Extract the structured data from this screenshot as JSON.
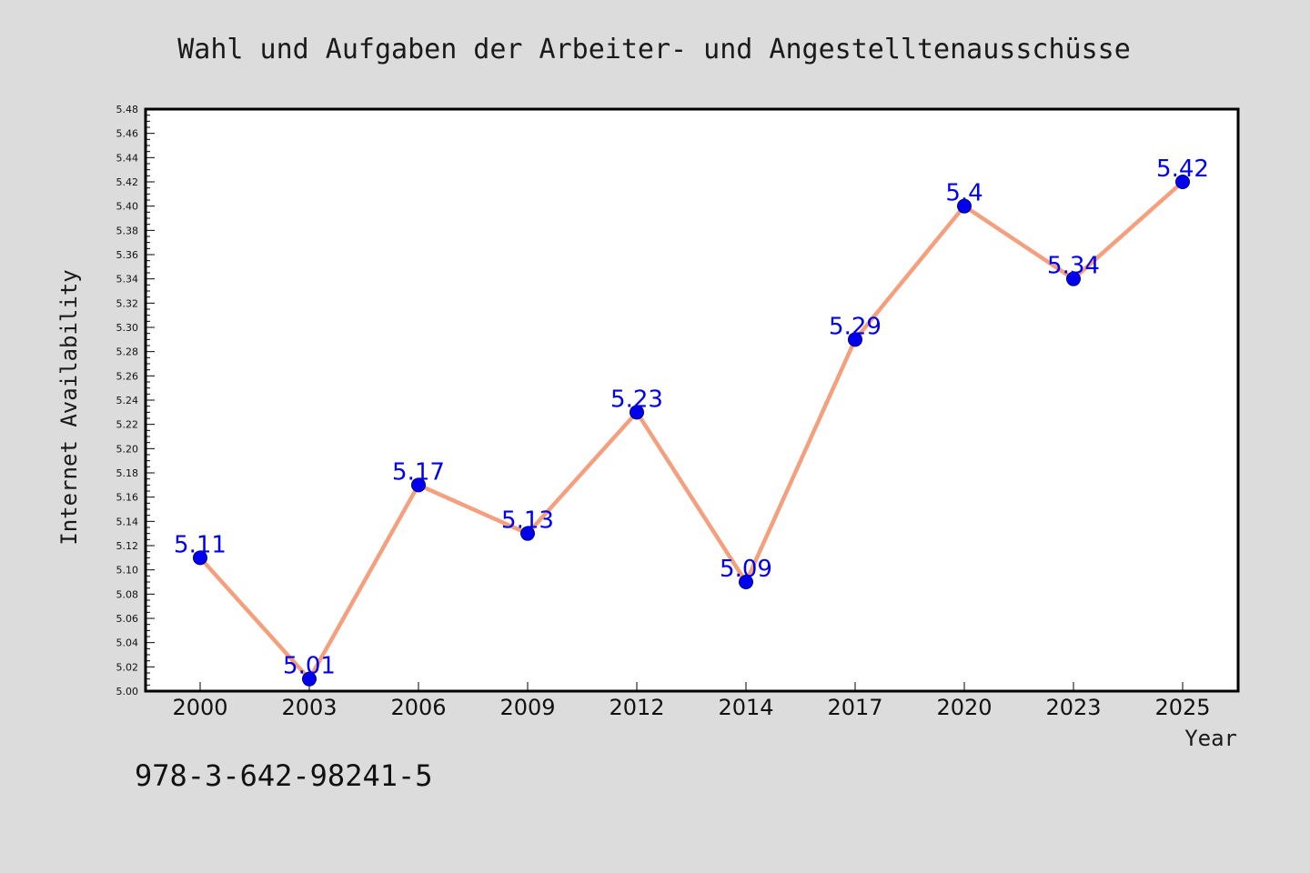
{
  "chart_data": {
    "type": "line",
    "title": "Wahl und Aufgaben der Arbeiter- und Angestelltenausschüsse",
    "xlabel": "Year",
    "ylabel": "Internet Availability",
    "categories": [
      "2000",
      "2003",
      "2006",
      "2009",
      "2012",
      "2014",
      "2017",
      "2020",
      "2023",
      "2025"
    ],
    "series": [
      {
        "values": [
          5.11,
          5.01,
          5.17,
          5.13,
          5.23,
          5.09,
          5.29,
          5.4,
          5.34,
          5.42
        ],
        "labels": [
          "5.11",
          "5.01",
          "5.17",
          "5.13",
          "5.23",
          "5.09",
          "5.29",
          "5.4",
          "5.34",
          "5.42"
        ],
        "line_color": "#f4a07e",
        "marker_color": "#0000ee",
        "label_color": "#0000ee"
      }
    ],
    "ylim": [
      5.0,
      5.48
    ],
    "yticks": [
      "5.00",
      "5.02",
      "5.04",
      "5.06",
      "5.08",
      "5.10",
      "5.12",
      "5.14",
      "5.16",
      "5.18",
      "5.20",
      "5.22",
      "5.24",
      "5.26",
      "5.28",
      "5.30",
      "5.32",
      "5.34",
      "5.36",
      "5.38",
      "5.40",
      "5.42",
      "5.44",
      "5.46",
      "5.48"
    ],
    "grid": false,
    "legend": "none"
  },
  "footer": {
    "text": "978-3-642-98241-5"
  },
  "colors": {
    "background": "#dcdcdc",
    "plot_background": "#ffffff",
    "axis": "#000000"
  }
}
